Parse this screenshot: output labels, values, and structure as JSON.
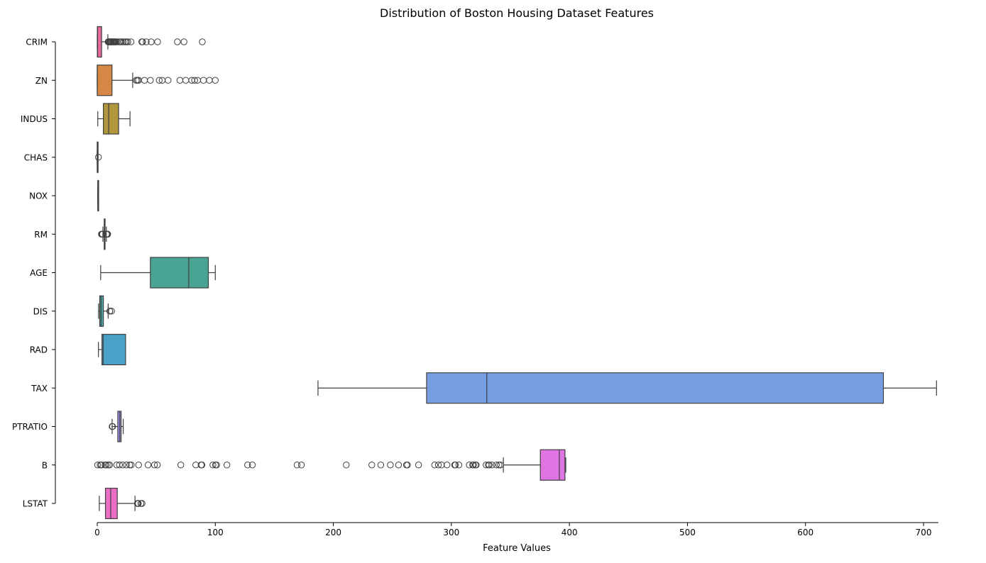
{
  "chart_data": {
    "type": "box",
    "orientation": "horizontal",
    "title": "Distribution of Boston Housing Dataset Features",
    "xlabel": "Feature Values",
    "ylabel": "",
    "xlim": [
      0,
      712
    ],
    "xticks": [
      0,
      100,
      200,
      300,
      400,
      500,
      600,
      700
    ],
    "grid": false,
    "categories": [
      "CRIM",
      "ZN",
      "INDUS",
      "CHAS",
      "NOX",
      "RM",
      "AGE",
      "DIS",
      "RAD",
      "TAX",
      "PTRATIO",
      "B",
      "LSTAT"
    ],
    "boxes": [
      {
        "label": "CRIM",
        "color": "#e7699a",
        "whisker_low": 0.01,
        "q1": 0.08,
        "median": 0.26,
        "q3": 3.68,
        "whisker_high": 8.98,
        "outliers": [
          9.2,
          9.5,
          9.9,
          10.1,
          10.8,
          11.1,
          11.6,
          12.0,
          12.2,
          13.0,
          13.5,
          14.1,
          14.3,
          15.0,
          15.2,
          15.8,
          16.8,
          18.5,
          19.6,
          20.1,
          22.0,
          23.6,
          24.8,
          25.9,
          28.6,
          37.7,
          38.4,
          41.5,
          45.7,
          51.1,
          67.9,
          73.5,
          89.0
        ]
      },
      {
        "label": "ZN",
        "color": "#d58746",
        "whisker_low": 0,
        "q1": 0,
        "median": 0,
        "q3": 12.5,
        "whisker_high": 30,
        "outliers": [
          33,
          34,
          35,
          40,
          45,
          52.5,
          55,
          60,
          70,
          75,
          80,
          82.5,
          85,
          90,
          95,
          100
        ]
      },
      {
        "label": "INDUS",
        "color": "#b0963c",
        "whisker_low": 0.46,
        "q1": 5.19,
        "median": 9.69,
        "q3": 18.1,
        "whisker_high": 27.74,
        "outliers": []
      },
      {
        "label": "CHAS",
        "color": "#8fa241",
        "whisker_low": 0,
        "q1": 0,
        "median": 0,
        "q3": 0,
        "whisker_high": 0,
        "outliers": [
          1
        ]
      },
      {
        "label": "NOX",
        "color": "#56ad63",
        "whisker_low": 0.385,
        "q1": 0.449,
        "median": 0.538,
        "q3": 0.624,
        "whisker_high": 0.871,
        "outliers": []
      },
      {
        "label": "RM",
        "color": "#4aaa86",
        "whisker_low": 4.78,
        "q1": 5.89,
        "median": 6.21,
        "q3": 6.62,
        "whisker_high": 7.71,
        "outliers": [
          3.56,
          3.86,
          4.14,
          4.37,
          4.52,
          7.82,
          7.88,
          8.03,
          8.25,
          8.38,
          8.72,
          8.78
        ]
      },
      {
        "label": "AGE",
        "color": "#49a493",
        "whisker_low": 2.9,
        "q1": 45.0,
        "median": 77.5,
        "q3": 94.1,
        "whisker_high": 100,
        "outliers": []
      },
      {
        "label": "DIS",
        "color": "#4aa3a5",
        "whisker_low": 1.13,
        "q1": 2.1,
        "median": 3.21,
        "q3": 5.19,
        "whisker_high": 9.22,
        "outliers": [
          10.59,
          10.71,
          12.13
        ]
      },
      {
        "label": "RAD",
        "color": "#4aa1c7",
        "whisker_low": 1,
        "q1": 4,
        "median": 5,
        "q3": 24,
        "whisker_high": 24,
        "outliers": []
      },
      {
        "label": "TAX",
        "color": "#769fe3",
        "whisker_low": 187,
        "q1": 279,
        "median": 330,
        "q3": 666,
        "whisker_high": 711,
        "outliers": []
      },
      {
        "label": "PTRATIO",
        "color": "#a290e6",
        "whisker_low": 12.6,
        "q1": 17.4,
        "median": 19.05,
        "q3": 20.2,
        "whisker_high": 22.0,
        "outliers": [
          12.6,
          13.0
        ]
      },
      {
        "label": "B",
        "color": "#df74e2",
        "whisker_low": 344.05,
        "q1": 375.38,
        "median": 391.44,
        "q3": 396.23,
        "whisker_high": 396.9,
        "outliers": [
          0.32,
          2.52,
          3.5,
          3.65,
          6.68,
          7.68,
          9.32,
          10.48,
          16.45,
          18.82,
          21.57,
          24.65,
          27.49,
          28.79,
          35.05,
          43.06,
          48.45,
          50.92,
          70.8,
          83.45,
          88.01,
          88.63,
          97.95,
          100.19,
          101.12,
          109.85,
          127.36,
          131.42,
          169.27,
          172.91,
          210.97,
          232.6,
          240.16,
          248.31,
          255.23,
          261.95,
          262.76,
          272.21,
          285.83,
          288.99,
          291.55,
          296.29,
          302.76,
          303.42,
          306.38,
          315.18,
          318.01,
          318.75,
          320.46,
          321.02,
          329.4,
          331.29,
          332.09,
          334.4,
          338.16,
          340.27,
          341.6
        ]
      },
      {
        "label": "LSTAT",
        "color": "#ea6ec4",
        "whisker_low": 1.73,
        "q1": 6.95,
        "median": 11.36,
        "q3": 16.96,
        "whisker_high": 31.99,
        "outliers": [
          34.02,
          34.37,
          34.41,
          34.77,
          36.98,
          37.97
        ]
      }
    ]
  }
}
